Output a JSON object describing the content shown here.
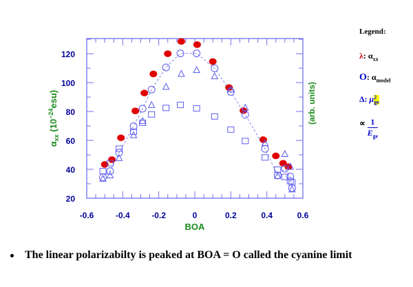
{
  "chart_data": {
    "type": "scatter",
    "xlabel": "BOA",
    "ylabel_main": "α",
    "ylabel_sub": "xx",
    "ylabel_rest": " (10",
    "ylabel_exp": "−24",
    "ylabel_unit": "esu)",
    "ylabel_right": "(arb. units)",
    "xlim": [
      -0.6,
      0.6
    ],
    "ylim": [
      20,
      130.5
    ],
    "xticks": [
      "-0.6",
      "-0.4",
      "-0.2",
      "0",
      "0.2",
      "0.4",
      "0.6"
    ],
    "xtick_values": [
      -0.6,
      -0.4,
      -0.2,
      0,
      0.2,
      0.4,
      0.6
    ],
    "yticks": [
      "20",
      "40",
      "60",
      "80",
      "100",
      "120"
    ],
    "ytick_values": [
      20,
      40,
      60,
      80,
      100,
      120
    ],
    "grid": false,
    "colors": {
      "axis": "#6f6ff0",
      "red": "#e00000",
      "blue": "#5a5af0",
      "tick_label": "#000099",
      "label": "#1a8a1a"
    },
    "series": [
      {
        "marker": "filled-circle",
        "color": "#e00000",
        "x": [
          -0.5,
          -0.46,
          -0.41,
          -0.33,
          -0.28,
          -0.23,
          -0.15,
          -0.075,
          0.013,
          0.1,
          0.19,
          0.27,
          0.38,
          0.45,
          0.49,
          0.52
        ],
        "y": [
          43.4,
          46.7,
          61.8,
          80.4,
          92.8,
          106,
          120,
          128.5,
          126.3,
          114.6,
          96.6,
          80.6,
          60.5,
          49.3,
          44.2,
          41.8
        ]
      },
      {
        "marker": "open-circle",
        "color": "#5a5af0",
        "dashed_line": true,
        "x": [
          -0.51,
          -0.47,
          -0.42,
          -0.34,
          -0.29,
          -0.24,
          -0.16,
          -0.08,
          0.01,
          0.11,
          0.2,
          0.28,
          0.39,
          0.46,
          0.5,
          0.53,
          0.54
        ],
        "y": [
          34.4,
          38.7,
          51.6,
          69.8,
          82,
          95.2,
          110.5,
          120.2,
          120.2,
          109.9,
          93.6,
          77.8,
          54.2,
          35.8,
          40.4,
          35,
          27
        ]
      },
      {
        "marker": "open-triangle",
        "color": "#5a5af0",
        "x": [
          -0.51,
          -0.47,
          -0.42,
          -0.34,
          -0.29,
          -0.24,
          -0.16,
          -0.075,
          0.01,
          0.11,
          0.2,
          0.28,
          0.39,
          0.46,
          0.5,
          0.53,
          0.54
        ],
        "y": [
          33.4,
          35.7,
          47.7,
          63.5,
          73.3,
          84.4,
          97,
          106,
          108.6,
          104.3,
          95.2,
          82.5,
          58,
          35.3,
          50.5,
          41.7,
          26
        ]
      },
      {
        "marker": "open-square",
        "color": "#5a5af0",
        "x": [
          -0.51,
          -0.47,
          -0.42,
          -0.34,
          -0.29,
          -0.24,
          -0.16,
          -0.08,
          0.01,
          0.11,
          0.2,
          0.28,
          0.39,
          0.46,
          0.5,
          0.53,
          0.54
        ],
        "y": [
          38.8,
          44.2,
          54.3,
          66,
          72.2,
          78,
          82.5,
          84.6,
          82.2,
          76.6,
          67.5,
          59.6,
          48.2,
          39.8,
          34.7,
          31.9,
          31
        ]
      }
    ]
  },
  "legend": {
    "title": "Legend:",
    "items": [
      {
        "symbol": "λ",
        "sep": ": ",
        "text": "α",
        "sub": "xx",
        "symbol_color": "#cc0000"
      },
      {
        "symbol": "O",
        "sep": ": ",
        "text": "α",
        "sub": "model",
        "symbol_color": "#0000cc"
      },
      {
        "symbol": "Δ",
        "sep": ": ",
        "text": "μ",
        "sup": "2",
        "sub": "ge",
        "symbol_color": "#0000cc",
        "highlight": "#ffff00"
      },
      {
        "symbol": "∝",
        "numerator": "1",
        "denominator": "E",
        "den_sub": "ge"
      }
    ]
  },
  "bullet": "The linear polarizabilty is peaked at BOA = O called the cyanine limit"
}
